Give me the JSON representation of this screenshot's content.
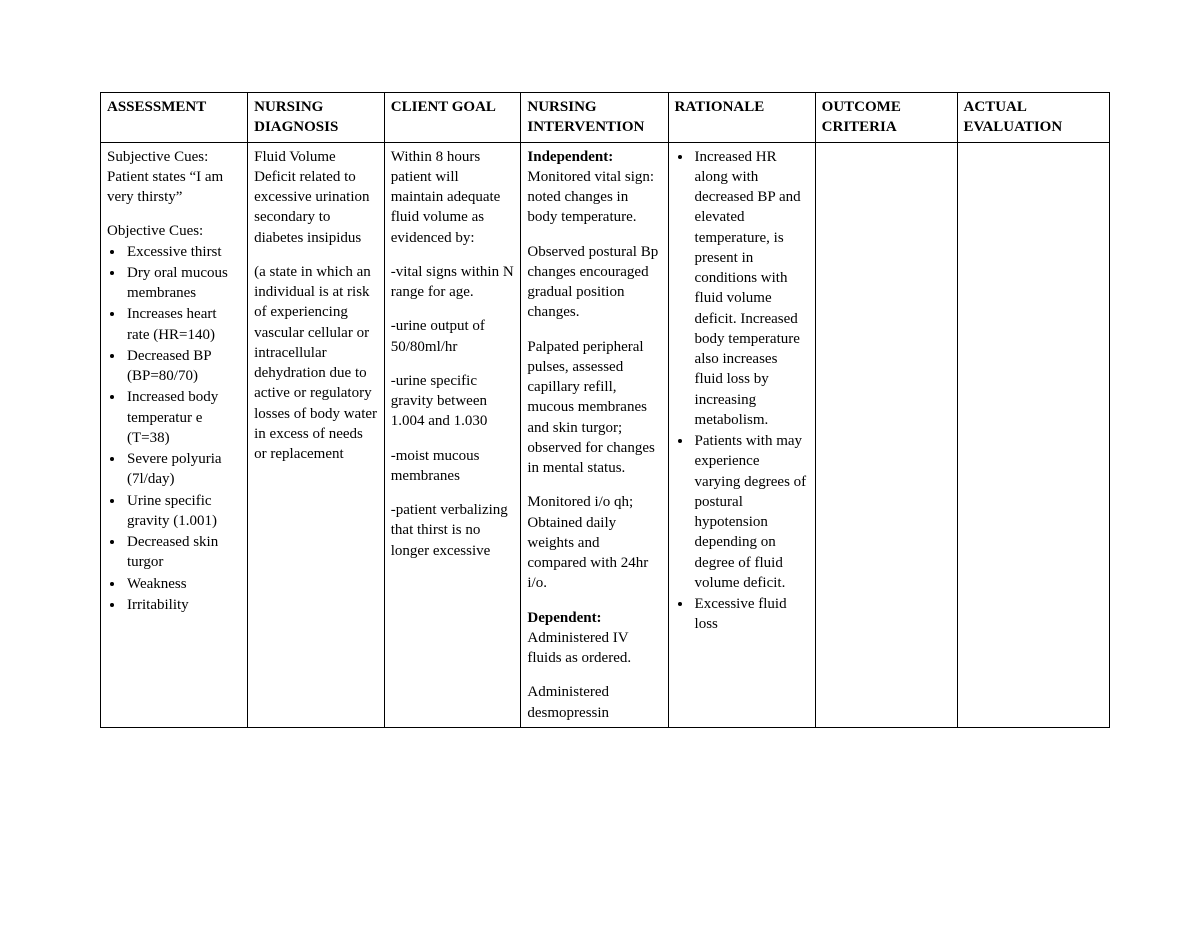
{
  "table": {
    "columns": [
      "ASSESSMENT",
      "NURSING DIAGNOSIS",
      "CLIENT GOAL",
      "NURSING INTERVENTION",
      "RATIONALE",
      "OUTCOME CRITERIA",
      "ACTUAL EVALUATION"
    ],
    "border_color": "#000000",
    "background_color": "#ffffff",
    "text_color": "#000000",
    "font_family": "Times New Roman",
    "header_fontsize": 15,
    "body_fontsize": 15
  },
  "assessment": {
    "subjective_label": "Subjective Cues:",
    "subjective_text": "Patient states “I am very thirsty”",
    "objective_label": "Objective Cues:",
    "objective_items": [
      "Excessive thirst",
      "Dry oral mucous membranes",
      "Increases heart rate (HR=140)",
      "Decreased BP (BP=80/70)",
      "Increased body temperatur e (T=38)",
      "Severe polyuria (7l/day)",
      "Urine specific gravity (1.001)",
      "Decreased skin turgor",
      "Weakness",
      "Irritability"
    ]
  },
  "diagnosis": {
    "p1": "Fluid Volume Deficit related to excessive urination secondary to diabetes insipidus",
    "p2": "(a state in which an individual is at risk of experiencing vascular cellular or intracellular dehydration due to active or regulatory losses of body water in excess of needs or replacement"
  },
  "goal": {
    "intro": "Within 8 hours patient will maintain adequate fluid volume as evidenced by:",
    "g1": "-vital signs within N range for age.",
    "g2": "-urine output of 50/80ml/hr",
    "g3": "-urine specific gravity between 1.004 and 1.030",
    "g4": "-moist mucous membranes",
    "g5": "-patient verbalizing that thirst is no longer excessive"
  },
  "intervention": {
    "independent_label": "Independent:",
    "i1": "Monitored vital sign: noted changes in body temperature.",
    "i2": "Observed postural Bp changes encouraged gradual position changes.",
    "i3": "Palpated peripheral pulses, assessed capillary refill, mucous membranes and skin turgor; observed for changes in mental status.",
    "i4": "Monitored i/o qh; Obtained daily weights and compared with 24hr i/o.",
    "dependent_label": "Dependent:",
    "d1": "Administered IV fluids as ordered.",
    "d2": "Administered desmopressin"
  },
  "rationale": {
    "items": [
      "Increased HR along with decreased BP and elevated temperature, is present in conditions with fluid volume deficit. Increased body temperature also increases fluid loss by increasing metabolism.",
      "Patients with may experience varying degrees of postural hypotension depending on degree of fluid volume deficit.",
      "Excessive fluid loss"
    ]
  },
  "outcome": {
    "text": ""
  },
  "evaluation": {
    "text": ""
  }
}
